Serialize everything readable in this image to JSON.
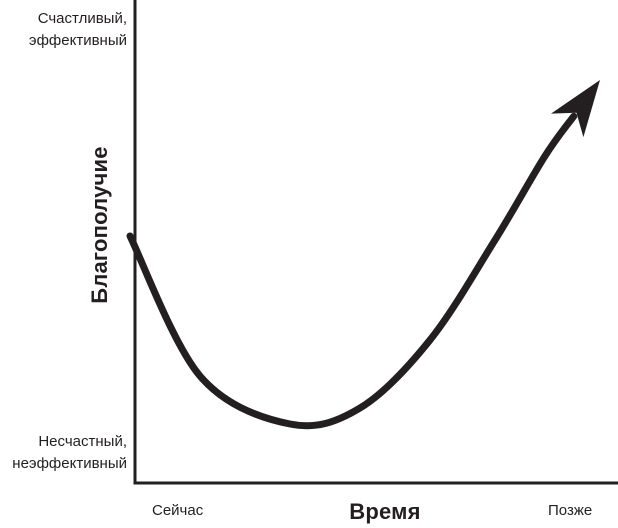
{
  "chart_data": {
    "type": "line",
    "title": "",
    "xlabel": "Время",
    "ylabel": "Благополучие",
    "x_tick_labels": [
      "Сейчас",
      "Позже"
    ],
    "y_tick_labels": [
      "Несчастный,\nнеэффективный",
      "Счастливый,\nэффективный"
    ],
    "xlim": [
      0,
      100
    ],
    "ylim": [
      0,
      100
    ],
    "grid": false,
    "series": [
      {
        "name": "Благополучие",
        "x": [
          6,
          20,
          38,
          52,
          66,
          79,
          89,
          100
        ],
        "y": [
          53,
          18,
          6,
          10,
          27,
          52,
          73,
          92
        ],
        "arrow_at_end": true,
        "color": "#231f20"
      }
    ],
    "text": {
      "y_top_line1": "Счастливый,",
      "y_top_line2": "эффективный",
      "y_bottom_line1": "Несчастный,",
      "y_bottom_line2": "неэффективный"
    }
  }
}
